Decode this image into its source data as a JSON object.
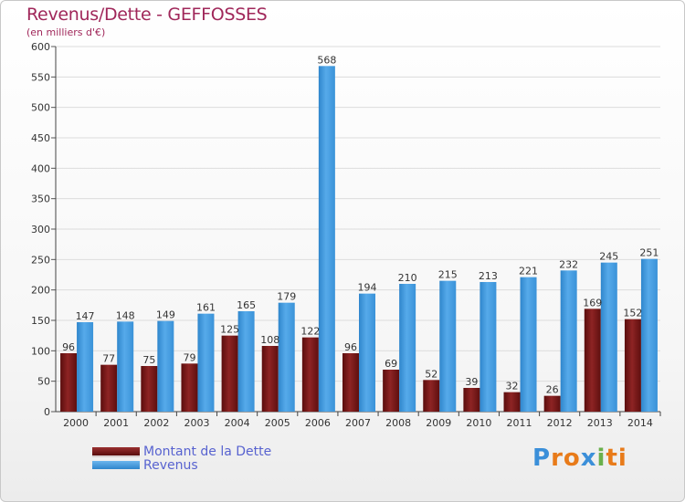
{
  "header": {
    "title": "Revenus/Dette - GEFFOSSES",
    "subtitle": "(en milliers d'€)"
  },
  "chart_data": {
    "type": "bar",
    "title": "Revenus/Dette - GEFFOSSES",
    "ylabel": "(en milliers d'€)",
    "ylim": [
      0,
      600
    ],
    "yticks": [
      0,
      50,
      100,
      150,
      200,
      250,
      300,
      350,
      400,
      450,
      500,
      550,
      600
    ],
    "grid": true,
    "legend_position": "bottom-left",
    "categories": [
      "2000",
      "2001",
      "2002",
      "2003",
      "2004",
      "2005",
      "2006",
      "2007",
      "2008",
      "2009",
      "2010",
      "2011",
      "2012",
      "2013",
      "2014"
    ],
    "series": [
      {
        "name": "Montant de la Dette",
        "color": "#7a1a1a",
        "values": [
          96,
          77,
          75,
          79,
          125,
          108,
          122,
          96,
          69,
          52,
          39,
          32,
          26,
          169,
          152
        ]
      },
      {
        "name": "Revenus",
        "color": "#3d96dc",
        "values": [
          147,
          148,
          149,
          161,
          165,
          179,
          568,
          194,
          210,
          215,
          213,
          221,
          232,
          245,
          251
        ]
      }
    ]
  },
  "logo": {
    "letters": [
      "P",
      "r",
      "o",
      "x",
      "i",
      "t",
      "i"
    ],
    "colors": [
      "#3b8fd9",
      "#e87b1a",
      "#e87b1a",
      "#3b8fd9",
      "#6ab04c",
      "#e87b1a",
      "#e87b1a"
    ]
  }
}
